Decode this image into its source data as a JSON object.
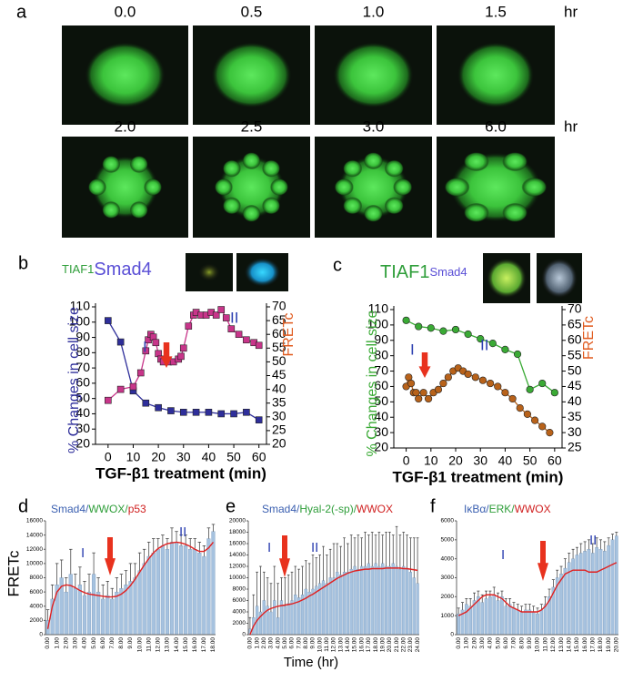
{
  "panel_labels": [
    "a",
    "b",
    "c",
    "d",
    "e",
    "f"
  ],
  "time_series_images": {
    "row1": {
      "labels": [
        "0.0",
        "0.5",
        "1.0",
        "1.5"
      ],
      "unit": "hr"
    },
    "row2": {
      "labels": [
        "2.0",
        "2.5",
        "3.0",
        "6.0"
      ],
      "unit": "hr"
    }
  },
  "shared_y_label": "FRETc",
  "shared_x_label": "Time (hr)",
  "chart_data": [
    {
      "type": "line",
      "title_parts": [
        {
          "text": "TIAF1",
          "color": "#2f9e3a"
        },
        {
          "text": "Smad4",
          "color": "#5a4fd6"
        }
      ],
      "xlabel": "TGF-β1 treatment (min)",
      "xlim": [
        -5,
        63
      ],
      "xticks": [
        0,
        10,
        20,
        30,
        40,
        50,
        60
      ],
      "ylim": [
        20,
        110
      ],
      "yticks": [
        20,
        30,
        40,
        50,
        60,
        70,
        80,
        90,
        100,
        110
      ],
      "y2lim": [
        20,
        70
      ],
      "y2ticks": [
        20,
        25,
        30,
        35,
        40,
        45,
        50,
        55,
        60,
        65,
        70
      ],
      "annotations": [
        "I",
        "II"
      ],
      "series": [
        {
          "name": "% Changes in cell size",
          "color": "#2e2e9a",
          "marker": "square",
          "x": [
            0,
            5,
            10,
            15,
            20,
            25,
            30,
            35,
            40,
            45,
            50,
            55,
            60
          ],
          "values": [
            101,
            87,
            55,
            47,
            44,
            42,
            41,
            41,
            41,
            40,
            40,
            41,
            36
          ]
        },
        {
          "name": "FRETc",
          "color": "#c8358a",
          "label_color": "#e05a1e",
          "marker": "square",
          "axis": "y2",
          "x": [
            0,
            5,
            10,
            13,
            15,
            16,
            17,
            18,
            19,
            20,
            21,
            22,
            24,
            26,
            28,
            29,
            30,
            32,
            34,
            35,
            37,
            39,
            41,
            43,
            45,
            47,
            49,
            52,
            55,
            58,
            60
          ],
          "values": [
            36,
            40,
            41,
            46,
            54,
            58,
            60,
            59,
            57,
            53,
            51,
            50,
            50,
            50,
            51,
            52,
            55,
            63,
            67,
            68,
            67,
            67,
            68,
            67,
            69,
            66,
            62,
            60,
            58,
            57,
            56
          ]
        }
      ]
    },
    {
      "type": "line",
      "title_parts": [
        {
          "text": "TIAF1",
          "color": "#2f9e3a"
        },
        {
          "text": "Smad4",
          "color": "#5a4fd6"
        }
      ],
      "xlabel": "TGF-β1 treatment (min)",
      "xlim": [
        -5,
        63
      ],
      "xticks": [
        0,
        10,
        20,
        30,
        40,
        50,
        60
      ],
      "ylim": [
        20,
        110
      ],
      "yticks": [
        20,
        30,
        40,
        50,
        60,
        70,
        80,
        90,
        100,
        110
      ],
      "y2lim": [
        25,
        70
      ],
      "y2ticks": [
        25,
        30,
        35,
        40,
        45,
        50,
        55,
        60,
        65,
        70
      ],
      "annotations": [
        "I",
        "II"
      ],
      "series": [
        {
          "name": "% Changes in cell size",
          "color": "#3aaa35",
          "marker": "circle",
          "x": [
            0,
            5,
            10,
            15,
            20,
            25,
            30,
            35,
            40,
            45,
            50,
            55,
            60
          ],
          "values": [
            103,
            99,
            98,
            96,
            97,
            94,
            91,
            88,
            84,
            81,
            58,
            62,
            56
          ]
        },
        {
          "name": "FRETc",
          "color": "#b8621a",
          "label_color": "#e05a1e",
          "marker": "circle",
          "axis": "y2",
          "x": [
            0,
            1,
            2,
            3,
            4,
            5,
            7,
            9,
            11,
            13,
            15,
            17,
            19,
            21,
            23,
            25,
            28,
            31,
            34,
            37,
            40,
            43,
            46,
            49,
            52,
            55,
            58
          ],
          "values": [
            45,
            48,
            46,
            43,
            43,
            41,
            43,
            41,
            43,
            44,
            46,
            48,
            50,
            51,
            50,
            49,
            48,
            47,
            46,
            45,
            43,
            41,
            38,
            36,
            34,
            32,
            30
          ]
        }
      ]
    },
    {
      "type": "bar",
      "title_parts": [
        {
          "text": "Smad4/",
          "color": "#3a5fb0"
        },
        {
          "text": "WWOX/",
          "color": "#2f9e3a"
        },
        {
          "text": "p53",
          "color": "#d02020"
        }
      ],
      "color": "#a6c2df",
      "error_color": "#333333",
      "trend_color": "#e02020",
      "annotations": [
        "I",
        "II"
      ],
      "ylim": [
        0,
        16000
      ],
      "yticks": [
        0,
        2000,
        4000,
        6000,
        8000,
        10000,
        12000,
        14000,
        16000
      ],
      "categories": [
        "0.00",
        null,
        "1.00",
        null,
        "2.00",
        null,
        "3.00",
        null,
        "4.00",
        null,
        "5.00",
        null,
        "6.00",
        null,
        "7.00",
        null,
        "8.00",
        null,
        "9.00",
        null,
        "10.00",
        null,
        "11.00",
        null,
        "12.00",
        null,
        "13.00",
        null,
        "14.00",
        null,
        "15.00",
        null,
        "16.00",
        null,
        "17.00",
        null,
        "18.00"
      ],
      "values": [
        2000,
        5000,
        7000,
        8000,
        6000,
        8500,
        6500,
        7000,
        5500,
        6000,
        8500,
        6000,
        5000,
        5500,
        5000,
        6000,
        6500,
        7000,
        7500,
        8000,
        9000,
        10000,
        11000,
        11500,
        12000,
        12500,
        12000,
        13000,
        13000,
        12500,
        12500,
        12000,
        12000,
        11500,
        11000,
        13500,
        14500
      ],
      "errors": [
        1500,
        2000,
        3000,
        2500,
        2000,
        3500,
        2000,
        2500,
        2000,
        2500,
        3000,
        2000,
        2000,
        2000,
        1500,
        2000,
        2000,
        2000,
        2500,
        2000,
        2500,
        2000,
        2000,
        2000,
        1500,
        1500,
        1500,
        2000,
        1500,
        1500,
        1500,
        1500,
        1500,
        1500,
        1500,
        1500,
        1000
      ],
      "trend": [
        800,
        4000,
        6000,
        6800,
        7000,
        6900,
        6600,
        6200,
        5900,
        5700,
        5600,
        5500,
        5400,
        5300,
        5300,
        5400,
        5700,
        6200,
        6900,
        7800,
        8800,
        9800,
        10700,
        11500,
        12100,
        12500,
        12800,
        12900,
        13000,
        12900,
        12700,
        12400,
        12000,
        11700,
        11700,
        12200,
        13000
      ]
    },
    {
      "type": "bar",
      "title_parts": [
        {
          "text": "Smad4/",
          "color": "#3a5fb0"
        },
        {
          "text": "Hyal-2(-sp)/",
          "color": "#2f9e3a"
        },
        {
          "text": "WWOX",
          "color": "#d02020"
        }
      ],
      "color": "#a6c2df",
      "error_color": "#333333",
      "trend_color": "#e02020",
      "annotations": [
        "I",
        "II"
      ],
      "ylim": [
        0,
        20000
      ],
      "yticks": [
        0,
        2000,
        4000,
        6000,
        8000,
        10000,
        12000,
        14000,
        16000,
        18000,
        20000
      ],
      "categories": [
        "0.00",
        null,
        "1.00",
        null,
        "2.00",
        null,
        "3.00",
        null,
        "4.00",
        null,
        "5.00",
        null,
        "6.00",
        null,
        "7.00",
        null,
        "8.00",
        null,
        "9.00",
        null,
        "10.00",
        null,
        "11.00",
        null,
        "12.00",
        null,
        "13.00",
        null,
        "14.00",
        null,
        "15.00",
        null,
        "16.00",
        null,
        "17.00",
        null,
        "18.00",
        null,
        "19.00",
        null,
        "20.00",
        null,
        "21.00",
        null,
        "22.00",
        null,
        "23.00",
        null,
        "24.00"
      ],
      "values": [
        1000,
        3000,
        5000,
        4000,
        6000,
        5000,
        4000,
        6000,
        3000,
        6000,
        5000,
        5500,
        6000,
        7000,
        6500,
        7000,
        8000,
        7500,
        8000,
        8500,
        9000,
        9500,
        9000,
        10000,
        10000,
        11000,
        10500,
        11000,
        11000,
        11500,
        12000,
        11500,
        12000,
        12000,
        12500,
        12000,
        12500,
        12000,
        12500,
        12000,
        12000,
        12500,
        12000,
        11500,
        12000,
        11500,
        11000,
        10000,
        9000
      ],
      "errors": [
        2000,
        4000,
        6000,
        8000,
        5000,
        5000,
        5000,
        6000,
        6000,
        4000,
        5000,
        5000,
        5000,
        5000,
        5000,
        5000,
        5000,
        5000,
        6000,
        5000,
        5000,
        6000,
        5000,
        5000,
        6000,
        5000,
        5000,
        6000,
        5000,
        6000,
        5000,
        6000,
        5000,
        6000,
        5000,
        6000,
        5000,
        6000,
        5000,
        6000,
        6000,
        5000,
        7000,
        6000,
        6000,
        6000,
        6000,
        7000,
        8000
      ],
      "trend": [
        0,
        1500,
        2500,
        3200,
        3800,
        4300,
        4600,
        4800,
        5000,
        5100,
        5200,
        5300,
        5400,
        5600,
        5800,
        6100,
        6400,
        6800,
        7100,
        7500,
        7900,
        8300,
        8700,
        9100,
        9500,
        9900,
        10200,
        10500,
        10800,
        11000,
        11200,
        11300,
        11400,
        11500,
        11500,
        11600,
        11600,
        11600,
        11600,
        11700,
        11700,
        11700,
        11700,
        11700,
        11600,
        11600,
        11500,
        11400,
        11300
      ]
    },
    {
      "type": "bar",
      "title_parts": [
        {
          "text": "IκBα/",
          "color": "#3a5fb0"
        },
        {
          "text": "ERK/",
          "color": "#2f9e3a"
        },
        {
          "text": "WWOX",
          "color": "#d02020"
        }
      ],
      "color": "#a6c2df",
      "error_color": "#333333",
      "trend_color": "#e02020",
      "annotations": [
        "I",
        "II"
      ],
      "ylim": [
        0,
        6000
      ],
      "yticks": [
        0,
        1000,
        2000,
        3000,
        4000,
        5000,
        6000
      ],
      "categories": [
        "0.00",
        null,
        "1.00",
        null,
        "2.00",
        null,
        "3.00",
        null,
        "4.00",
        null,
        "5.00",
        null,
        "6.00",
        null,
        "7.00",
        null,
        "8.00",
        null,
        "9.00",
        null,
        "10.00",
        null,
        "11.00",
        null,
        "12.00",
        null,
        "13.00",
        null,
        "14.00",
        null,
        "15.00",
        null,
        "16.00",
        null,
        "17.00",
        null,
        "18.00",
        null,
        "19.00",
        null,
        "20.00"
      ],
      "values": [
        1100,
        1300,
        1600,
        1500,
        1800,
        2000,
        1700,
        1900,
        2000,
        2100,
        1800,
        2000,
        1500,
        1600,
        1400,
        1300,
        1200,
        1300,
        1300,
        1200,
        1100,
        1300,
        1600,
        2000,
        2500,
        3000,
        3200,
        3500,
        3800,
        4000,
        4200,
        4300,
        4400,
        4500,
        4300,
        4600,
        4500,
        4400,
        4700,
        5000,
        5200
      ],
      "errors": [
        300,
        400,
        300,
        400,
        400,
        300,
        400,
        400,
        300,
        400,
        400,
        300,
        400,
        300,
        300,
        300,
        300,
        300,
        300,
        300,
        300,
        300,
        400,
        400,
        400,
        400,
        400,
        500,
        500,
        500,
        400,
        500,
        500,
        500,
        500,
        500,
        500,
        500,
        400,
        300,
        200
      ],
      "trend": [
        1000,
        1100,
        1200,
        1400,
        1600,
        1800,
        2000,
        2100,
        2100,
        2100,
        2000,
        1900,
        1700,
        1500,
        1400,
        1300,
        1200,
        1200,
        1200,
        1200,
        1200,
        1300,
        1500,
        1800,
        2200,
        2600,
        2900,
        3200,
        3300,
        3400,
        3400,
        3400,
        3400,
        3300,
        3300,
        3300,
        3400,
        3500,
        3600,
        3700,
        3800
      ]
    }
  ]
}
